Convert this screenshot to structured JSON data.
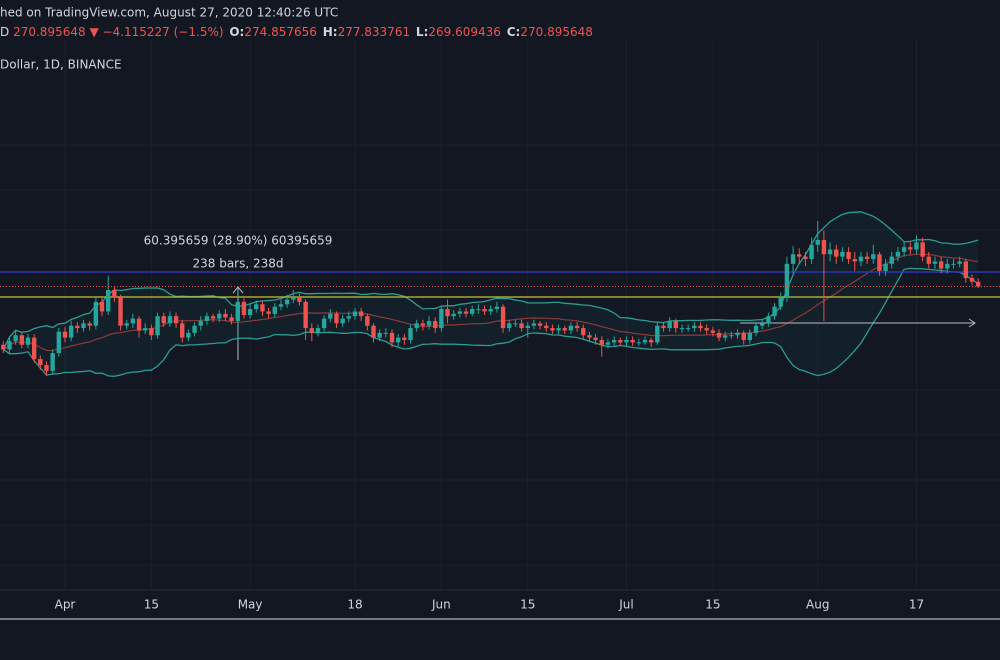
{
  "header": {
    "source": "hed on TradingView.com, August 27, 2020 12:40:26 UTC",
    "prefix": "D",
    "last": "270.895648",
    "arrow": "▼",
    "change": "−4.115227 (−1.5%)",
    "o_label": "O:",
    "o": "274.857656",
    "h_label": "H:",
    "h": "277.833761",
    "l_label": "L:",
    "l": "269.609436",
    "c_label": "C:",
    "c": "270.895648"
  },
  "measure": {
    "line1": "60.395659 (28.90%) 60395659",
    "line2": "238 bars, 238d"
  },
  "chart_data": {
    "type": "candlestick",
    "title": "Dollar, 1D, BINANCE",
    "up_color": "#26a69a",
    "down_color": "#ef5350",
    "ylim": [
      16,
      478
    ],
    "categories": [
      null,
      null,
      null,
      null,
      null,
      null,
      null,
      null,
      null,
      null,
      "Apr",
      null,
      null,
      null,
      null,
      null,
      null,
      null,
      null,
      null,
      null,
      null,
      null,
      null,
      "15",
      null,
      null,
      null,
      null,
      null,
      null,
      null,
      null,
      null,
      null,
      null,
      null,
      null,
      null,
      null,
      "May",
      null,
      null,
      null,
      null,
      null,
      null,
      null,
      null,
      null,
      null,
      null,
      null,
      null,
      null,
      null,
      null,
      "18",
      null,
      null,
      null,
      null,
      null,
      null,
      null,
      null,
      null,
      null,
      null,
      null,
      null,
      "Jun",
      null,
      null,
      null,
      null,
      null,
      null,
      null,
      null,
      null,
      null,
      null,
      null,
      null,
      "15",
      null,
      null,
      null,
      null,
      null,
      null,
      null,
      null,
      null,
      null,
      null,
      null,
      null,
      null,
      null,
      "Jul",
      null,
      null,
      null,
      null,
      null,
      null,
      null,
      null,
      null,
      null,
      null,
      null,
      null,
      "15",
      null,
      null,
      null,
      null,
      null,
      null,
      null,
      null,
      null,
      null,
      null,
      null,
      null,
      null,
      null,
      null,
      "Aug",
      null,
      null,
      null,
      null,
      null,
      null,
      null,
      null,
      null,
      null,
      null,
      null,
      null,
      null,
      null,
      "17",
      null,
      null,
      null,
      null,
      null,
      null,
      null,
      null,
      null,
      null
    ],
    "ohlc": [
      [
        222,
        225,
        215,
        218
      ],
      [
        218,
        228,
        214,
        225
      ],
      [
        225,
        234,
        222,
        230
      ],
      [
        230,
        233,
        219,
        222
      ],
      [
        222,
        231,
        219,
        228
      ],
      [
        228,
        231,
        207,
        210
      ],
      [
        210,
        213,
        201,
        205
      ],
      [
        205,
        208,
        196,
        200
      ],
      [
        200,
        218,
        197,
        215
      ],
      [
        215,
        236,
        212,
        233
      ],
      [
        233,
        237,
        224,
        228
      ],
      [
        228,
        242,
        225,
        238
      ],
      [
        238,
        241,
        232,
        236
      ],
      [
        236,
        243,
        233,
        240
      ],
      [
        240,
        242,
        234,
        238
      ],
      [
        238,
        262,
        235,
        258
      ],
      [
        258,
        262,
        246,
        250
      ],
      [
        250,
        280,
        247,
        268
      ],
      [
        268,
        271,
        258,
        262
      ],
      [
        262,
        264,
        234,
        238
      ],
      [
        238,
        243,
        235,
        240
      ],
      [
        240,
        248,
        236,
        244
      ],
      [
        244,
        246,
        228,
        234
      ],
      [
        234,
        240,
        231,
        236
      ],
      [
        236,
        239,
        226,
        230
      ],
      [
        230,
        249,
        227,
        246
      ],
      [
        246,
        249,
        237,
        240
      ],
      [
        240,
        250,
        237,
        246
      ],
      [
        246,
        249,
        236,
        240
      ],
      [
        240,
        243,
        224,
        228
      ],
      [
        228,
        235,
        225,
        232
      ],
      [
        232,
        241,
        229,
        238
      ],
      [
        238,
        246,
        234,
        242
      ],
      [
        242,
        249,
        239,
        246
      ],
      [
        246,
        248,
        241,
        244
      ],
      [
        244,
        251,
        241,
        248
      ],
      [
        248,
        252,
        242,
        245
      ],
      [
        245,
        248,
        239,
        242
      ],
      [
        242,
        270,
        224,
        258
      ],
      [
        258,
        261,
        244,
        247
      ],
      [
        247,
        256,
        244,
        252
      ],
      [
        252,
        259,
        249,
        256
      ],
      [
        256,
        259,
        246,
        250
      ],
      [
        250,
        253,
        244,
        248
      ],
      [
        248,
        257,
        245,
        254
      ],
      [
        254,
        260,
        251,
        256
      ],
      [
        256,
        264,
        253,
        260
      ],
      [
        260,
        268,
        257,
        262
      ],
      [
        262,
        265,
        255,
        258
      ],
      [
        258,
        260,
        226,
        236
      ],
      [
        236,
        240,
        225,
        232
      ],
      [
        232,
        239,
        229,
        236
      ],
      [
        236,
        247,
        233,
        244
      ],
      [
        244,
        252,
        241,
        248
      ],
      [
        248,
        250,
        236,
        240
      ],
      [
        240,
        247,
        237,
        244
      ],
      [
        244,
        250,
        241,
        246
      ],
      [
        246,
        253,
        243,
        250
      ],
      [
        250,
        253,
        242,
        246
      ],
      [
        246,
        248,
        234,
        238
      ],
      [
        238,
        240,
        224,
        228
      ],
      [
        228,
        235,
        225,
        232
      ],
      [
        232,
        236,
        228,
        232
      ],
      [
        232,
        235,
        220,
        224
      ],
      [
        224,
        231,
        220,
        228
      ],
      [
        228,
        231,
        222,
        226
      ],
      [
        226,
        239,
        223,
        236
      ],
      [
        236,
        243,
        233,
        240
      ],
      [
        240,
        243,
        234,
        238
      ],
      [
        238,
        246,
        235,
        242
      ],
      [
        242,
        245,
        232,
        236
      ],
      [
        236,
        255,
        233,
        252
      ],
      [
        252,
        260,
        240,
        246
      ],
      [
        246,
        251,
        243,
        248
      ],
      [
        248,
        253,
        245,
        250
      ],
      [
        250,
        253,
        245,
        248
      ],
      [
        248,
        255,
        246,
        252
      ],
      [
        252,
        256,
        248,
        252
      ],
      [
        252,
        255,
        247,
        250
      ],
      [
        250,
        255,
        247,
        252
      ],
      [
        252,
        258,
        249,
        254
      ],
      [
        254,
        256,
        232,
        236
      ],
      [
        236,
        243,
        233,
        240
      ],
      [
        240,
        243,
        237,
        240
      ],
      [
        240,
        243,
        233,
        236
      ],
      [
        236,
        241,
        228,
        238
      ],
      [
        238,
        243,
        235,
        240
      ],
      [
        240,
        242,
        235,
        238
      ],
      [
        238,
        241,
        233,
        236
      ],
      [
        236,
        239,
        231,
        234
      ],
      [
        234,
        239,
        231,
        236
      ],
      [
        236,
        238,
        231,
        234
      ],
      [
        234,
        241,
        231,
        238
      ],
      [
        238,
        241,
        233,
        236
      ],
      [
        236,
        239,
        227,
        230
      ],
      [
        230,
        233,
        224,
        228
      ],
      [
        228,
        231,
        222,
        226
      ],
      [
        226,
        229,
        212,
        222
      ],
      [
        222,
        227,
        219,
        224
      ],
      [
        224,
        229,
        221,
        226
      ],
      [
        226,
        228,
        221,
        224
      ],
      [
        224,
        229,
        221,
        226
      ],
      [
        226,
        229,
        221,
        224
      ],
      [
        224,
        227,
        221,
        224
      ],
      [
        224,
        229,
        222,
        226
      ],
      [
        226,
        228,
        220,
        224
      ],
      [
        224,
        241,
        222,
        238
      ],
      [
        238,
        241,
        233,
        236
      ],
      [
        236,
        245,
        233,
        242
      ],
      [
        242,
        244,
        232,
        236
      ],
      [
        236,
        239,
        232,
        236
      ],
      [
        236,
        239,
        233,
        236
      ],
      [
        236,
        241,
        233,
        238
      ],
      [
        238,
        241,
        233,
        236
      ],
      [
        236,
        239,
        231,
        234
      ],
      [
        234,
        237,
        229,
        232
      ],
      [
        232,
        235,
        225,
        228
      ],
      [
        228,
        233,
        225,
        230
      ],
      [
        230,
        233,
        227,
        230
      ],
      [
        230,
        235,
        227,
        232
      ],
      [
        232,
        234,
        222,
        226
      ],
      [
        226,
        235,
        223,
        232
      ],
      [
        232,
        241,
        229,
        238
      ],
      [
        238,
        243,
        235,
        240
      ],
      [
        240,
        249,
        237,
        246
      ],
      [
        246,
        257,
        243,
        254
      ],
      [
        254,
        266,
        251,
        262
      ],
      [
        262,
        296,
        258,
        290
      ],
      [
        290,
        305,
        282,
        298
      ],
      [
        298,
        303,
        290,
        296
      ],
      [
        296,
        300,
        288,
        294
      ],
      [
        294,
        312,
        290,
        306
      ],
      [
        306,
        326,
        300,
        310
      ],
      [
        310,
        318,
        242,
        298
      ],
      [
        298,
        308,
        292,
        302
      ],
      [
        302,
        306,
        290,
        296
      ],
      [
        296,
        304,
        292,
        300
      ],
      [
        300,
        304,
        290,
        294
      ],
      [
        294,
        300,
        284,
        292
      ],
      [
        292,
        300,
        288,
        296
      ],
      [
        296,
        300,
        290,
        294
      ],
      [
        294,
        306,
        290,
        298
      ],
      [
        298,
        300,
        280,
        284
      ],
      [
        284,
        294,
        280,
        290
      ],
      [
        290,
        300,
        286,
        296
      ],
      [
        296,
        304,
        292,
        300
      ],
      [
        300,
        308,
        296,
        304
      ],
      [
        304,
        308,
        298,
        302
      ],
      [
        302,
        314,
        298,
        308
      ],
      [
        308,
        312,
        292,
        296
      ],
      [
        296,
        300,
        286,
        290
      ],
      [
        290,
        296,
        286,
        292
      ],
      [
        292,
        296,
        282,
        286
      ],
      [
        286,
        294,
        282,
        290
      ],
      [
        290,
        294,
        286,
        290
      ],
      [
        290,
        296,
        287,
        292
      ],
      [
        292,
        294,
        274,
        278
      ],
      [
        278,
        281,
        272,
        275
      ],
      [
        274.857656,
        277.833761,
        269.609436,
        270.895648
      ]
    ]
  }
}
